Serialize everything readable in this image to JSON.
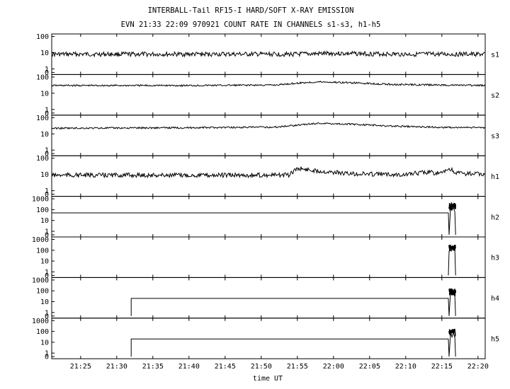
{
  "title": "INTERBALL-Tail RF15-I HARD/SOFT X-RAY EMISSION",
  "subtitle": "EVN 21:33 22:09 970921  COUNT RATE IN CHANNELS s1-s3, h1-h5",
  "chart_data": {
    "type": "line",
    "title": "INTERBALL-Tail RF15-I HARD/SOFT X-RAY EMISSION",
    "subtitle": "EVN 21:33 22:09 970921  COUNT RATE IN CHANNELS s1-s3, h1-h5",
    "xlabel": "time UT",
    "xlim": [
      "21:21",
      "22:21"
    ],
    "x_ticks": [
      "21:25",
      "21:30",
      "21:35",
      "21:40",
      "21:45",
      "21:50",
      "21:55",
      "22:00",
      "22:05",
      "22:10",
      "22:15",
      "22:20"
    ],
    "grid": false,
    "panels": [
      {
        "name": "s1",
        "scale": "log",
        "y_ticks": [
          "100",
          "10",
          "1",
          "0"
        ],
        "x": [
          "21:21",
          "21:30",
          "21:40",
          "21:50",
          "21:55",
          "22:00",
          "22:10",
          "22:16",
          "22:21"
        ],
        "values": [
          8,
          8,
          8,
          8,
          8,
          9,
          8,
          8,
          8
        ]
      },
      {
        "name": "s2",
        "scale": "log",
        "y_ticks": [
          "100",
          "10",
          "1",
          "0"
        ],
        "x": [
          "21:21",
          "21:40",
          "21:52",
          "21:56",
          "21:58",
          "22:02",
          "22:08",
          "22:15",
          "22:21"
        ],
        "values": [
          30,
          30,
          32,
          45,
          50,
          45,
          35,
          32,
          30
        ]
      },
      {
        "name": "s3",
        "scale": "log",
        "y_ticks": [
          "100",
          "10",
          "1",
          "0"
        ],
        "x": [
          "21:21",
          "21:40",
          "21:52",
          "21:56",
          "21:58",
          "22:02",
          "22:08",
          "22:15",
          "22:21"
        ],
        "values": [
          22,
          24,
          26,
          38,
          45,
          40,
          30,
          25,
          24
        ]
      },
      {
        "name": "h1",
        "scale": "log",
        "y_ticks": [
          "100",
          "10",
          "1",
          "0"
        ],
        "x": [
          "21:21",
          "21:40",
          "21:54",
          "21:55",
          "21:57",
          "22:02",
          "22:10",
          "22:13",
          "22:15",
          "22:16",
          "22:17",
          "22:21"
        ],
        "values": [
          9,
          9,
          9,
          24,
          18,
          11,
          10,
          14,
          11,
          22,
          12,
          10
        ]
      },
      {
        "name": "h2",
        "scale": "log",
        "y_ticks": [
          "1000",
          "100",
          "10",
          "1",
          "0"
        ],
        "x": [
          "21:21",
          "22:15.9",
          "22:16.0",
          "22:16.2",
          "22:16.4",
          "22:16.6",
          "22:16.8",
          "22:16.9"
        ],
        "values": [
          50,
          50,
          0,
          150,
          90,
          160,
          60,
          0
        ]
      },
      {
        "name": "h3",
        "scale": "log",
        "y_ticks": [
          "1000",
          "100",
          "10",
          "1",
          "0"
        ],
        "x": [
          "22:15.9",
          "22:16.0",
          "22:16.2",
          "22:16.4",
          "22:16.6",
          "22:16.8",
          "22:16.9"
        ],
        "values": [
          0,
          80,
          200,
          120,
          220,
          100,
          0
        ]
      },
      {
        "name": "h4",
        "scale": "log",
        "y_ticks": [
          "1000",
          "100",
          "10",
          "1",
          "0"
        ],
        "x": [
          "21:32",
          "21:32",
          "22:15.9",
          "22:16.0",
          "22:16.2",
          "22:16.4",
          "22:16.6",
          "22:16.8",
          "22:16.9"
        ],
        "values": [
          0,
          20,
          20,
          0,
          80,
          40,
          90,
          30,
          0
        ]
      },
      {
        "name": "h5",
        "scale": "log",
        "y_ticks": [
          "1000",
          "100",
          "10",
          "1",
          "0"
        ],
        "x": [
          "21:32",
          "21:32",
          "22:15.9",
          "22:16.0",
          "22:16.2",
          "22:16.4",
          "22:16.6",
          "22:16.8",
          "22:16.9"
        ],
        "values": [
          0,
          20,
          20,
          0,
          70,
          30,
          80,
          25,
          0
        ]
      }
    ]
  }
}
